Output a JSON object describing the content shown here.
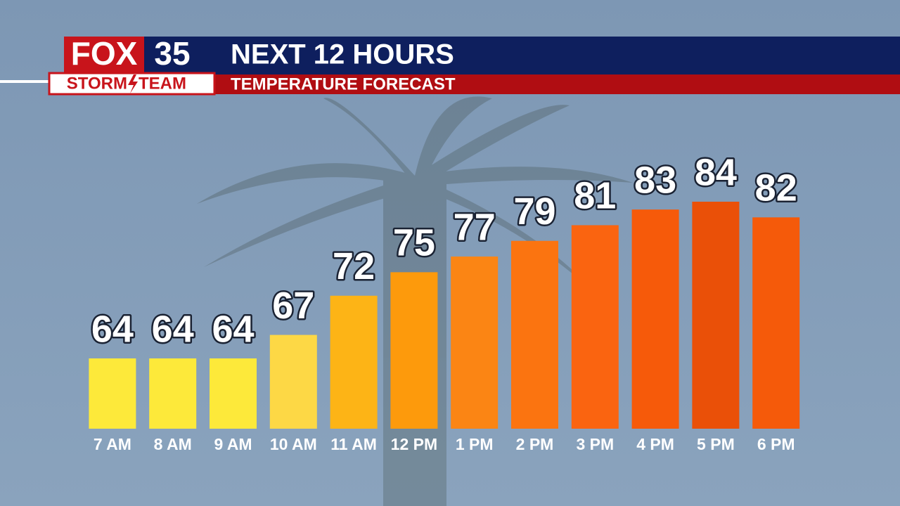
{
  "logo": {
    "station": "FOX",
    "number": "35",
    "team_left": "STORM",
    "team_right": "TEAM"
  },
  "chart_data": {
    "type": "bar",
    "title": "NEXT 12 HOURS",
    "subtitle": "TEMPERATURE FORECAST",
    "categories": [
      "7 AM",
      "8 AM",
      "9 AM",
      "10 AM",
      "11 AM",
      "12 PM",
      "1 PM",
      "2 PM",
      "3 PM",
      "4 PM",
      "5 PM",
      "6 PM"
    ],
    "values": [
      64,
      64,
      64,
      67,
      72,
      75,
      77,
      79,
      81,
      83,
      84,
      82
    ],
    "colors": [
      "#fde93a",
      "#fde93a",
      "#fde93a",
      "#fdd845",
      "#fdb416",
      "#fd9a0c",
      "#fb8514",
      "#fb7410",
      "#fa6410",
      "#f65a0a",
      "#ea5008",
      "#f55a0a"
    ]
  }
}
